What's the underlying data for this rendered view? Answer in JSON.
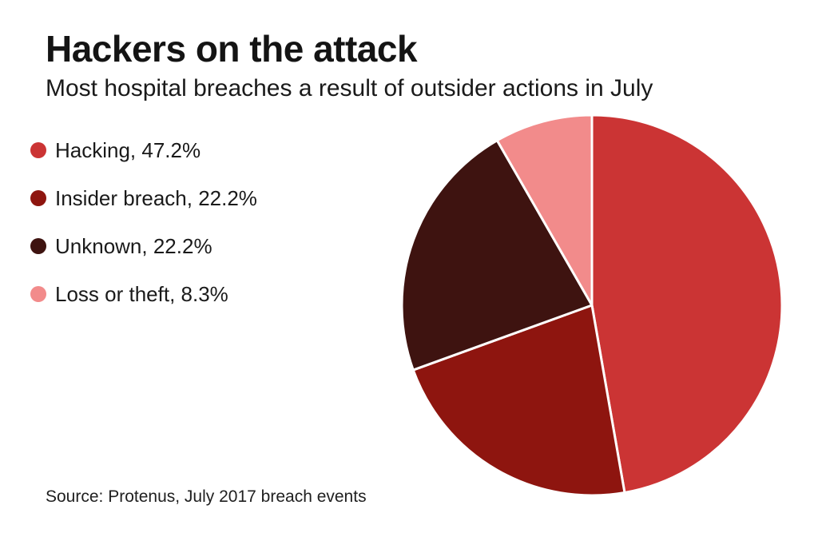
{
  "header": {
    "title": "Hackers on the attack",
    "subtitle": "Most hospital breaches a result of outsider actions in July"
  },
  "legend": {
    "items": [
      {
        "label": "Hacking",
        "value": "47.2%",
        "display": "Hacking, 47.2%",
        "color": "#cb3434"
      },
      {
        "label": "Insider breach",
        "value": "22.2%",
        "display": "Insider breach, 22.2%",
        "color": "#8e150f"
      },
      {
        "label": "Unknown",
        "value": "22.2%",
        "display": "Unknown, 22.2%",
        "color": "#3e1310"
      },
      {
        "label": "Loss or theft",
        "value": "8.3%",
        "display": "Loss or theft, 8.3%",
        "color": "#f28b8b"
      }
    ]
  },
  "source": "Source: Protenus, July 2017 breach events",
  "chart_data": {
    "type": "pie",
    "title": "Hackers on the attack",
    "subtitle": "Most hospital breaches a result of outsider actions in July",
    "labels": [
      "Hacking",
      "Insider breach",
      "Unknown",
      "Loss or theft"
    ],
    "values": [
      47.2,
      22.2,
      22.2,
      8.3
    ],
    "unit": "%",
    "colors": [
      "#cb3434",
      "#8e150f",
      "#3e1310",
      "#f28b8b"
    ],
    "start_angle": "12 o'clock",
    "direction": "clockwise",
    "slice_gap_color": "#ffffff",
    "slice_gap_width": 3,
    "legend_position": "left",
    "background": "#ffffff",
    "source": "Source: Protenus, July 2017 breach events"
  }
}
